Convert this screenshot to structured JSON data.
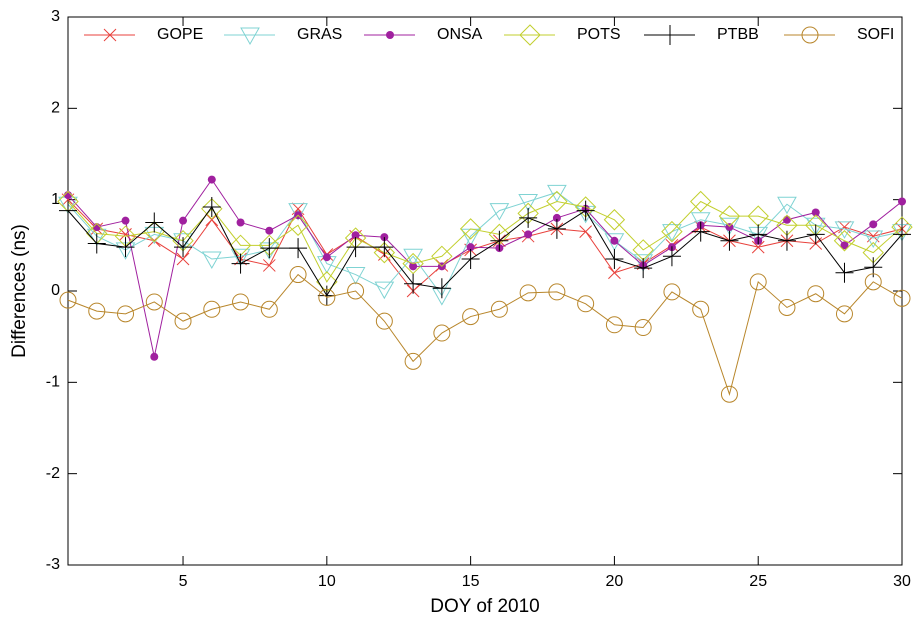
{
  "chart_data": {
    "type": "line",
    "xlabel": "DOY of 2010",
    "ylabel": "Differences (ns)",
    "x": [
      1,
      2,
      3,
      4,
      5,
      6,
      7,
      8,
      9,
      10,
      11,
      12,
      13,
      14,
      15,
      16,
      17,
      18,
      19,
      20,
      21,
      22,
      23,
      24,
      25,
      26,
      27,
      28,
      29,
      30
    ],
    "xlim": [
      1,
      30
    ],
    "xticks": [
      5,
      10,
      15,
      20,
      25,
      30
    ],
    "ylim": [
      -3,
      3
    ],
    "yticks": [
      -3,
      -2,
      -1,
      0,
      1,
      2,
      3
    ],
    "legend": "top",
    "series": [
      {
        "name": "GOPE",
        "color": "#e8413c",
        "marker": "x",
        "values": [
          1.0,
          0.68,
          0.62,
          0.55,
          0.35,
          0.78,
          0.35,
          0.28,
          0.9,
          0.4,
          0.6,
          0.4,
          0.0,
          0.28,
          0.45,
          0.55,
          0.6,
          0.68,
          0.65,
          0.2,
          0.3,
          0.5,
          0.7,
          0.55,
          0.48,
          0.55,
          0.52,
          0.7,
          0.6,
          0.68
        ]
      },
      {
        "name": "GRAS",
        "color": "#7fd3d3",
        "marker": "triangle-down",
        "values": [
          0.95,
          0.6,
          0.45,
          0.62,
          0.55,
          0.35,
          0.38,
          0.45,
          0.88,
          0.3,
          0.18,
          0.02,
          0.38,
          -0.05,
          0.6,
          0.88,
          0.98,
          1.08,
          0.85,
          0.55,
          0.32,
          0.65,
          0.78,
          0.72,
          0.62,
          0.95,
          0.72,
          0.68,
          0.58,
          0.65
        ]
      },
      {
        "name": "ONSA",
        "color": "#a0209f",
        "marker": "dot",
        "values": [
          1.05,
          0.7,
          0.77,
          -0.72,
          0.77,
          1.22,
          0.75,
          0.66,
          0.83,
          0.37,
          0.61,
          0.59,
          0.27,
          0.27,
          0.48,
          0.47,
          0.62,
          0.8,
          0.9,
          0.55,
          0.28,
          0.48,
          0.72,
          0.7,
          0.55,
          0.78,
          0.86,
          0.5,
          0.73,
          0.98
        ]
      },
      {
        "name": "POTS",
        "color": "#c2cf2e",
        "marker": "diamond",
        "values": [
          0.98,
          0.63,
          0.6,
          0.65,
          0.55,
          0.9,
          0.5,
          0.5,
          0.72,
          0.1,
          0.58,
          0.42,
          0.3,
          0.38,
          0.68,
          0.62,
          0.85,
          0.98,
          0.92,
          0.78,
          0.45,
          0.65,
          0.98,
          0.82,
          0.82,
          0.72,
          0.72,
          0.55,
          0.42,
          0.7
        ]
      },
      {
        "name": "PTBB",
        "color": "#000000",
        "marker": "plus",
        "values": [
          0.88,
          0.52,
          0.48,
          0.75,
          0.48,
          0.92,
          0.3,
          0.47,
          0.47,
          -0.05,
          0.48,
          0.48,
          0.08,
          0.03,
          0.35,
          0.55,
          0.8,
          0.68,
          0.88,
          0.35,
          0.25,
          0.38,
          0.65,
          0.55,
          0.62,
          0.55,
          0.62,
          0.2,
          0.26,
          0.62
        ]
      },
      {
        "name": "SOFI",
        "color": "#b8862b",
        "marker": "circle",
        "values": [
          -0.1,
          -0.22,
          -0.25,
          -0.12,
          -0.33,
          -0.2,
          -0.12,
          -0.2,
          0.18,
          -0.07,
          0.0,
          -0.33,
          -0.77,
          -0.46,
          -0.28,
          -0.2,
          -0.02,
          -0.01,
          -0.14,
          -0.37,
          -0.4,
          -0.01,
          -0.2,
          -1.13,
          0.1,
          -0.18,
          -0.03,
          -0.25,
          0.1,
          -0.08
        ]
      }
    ]
  }
}
